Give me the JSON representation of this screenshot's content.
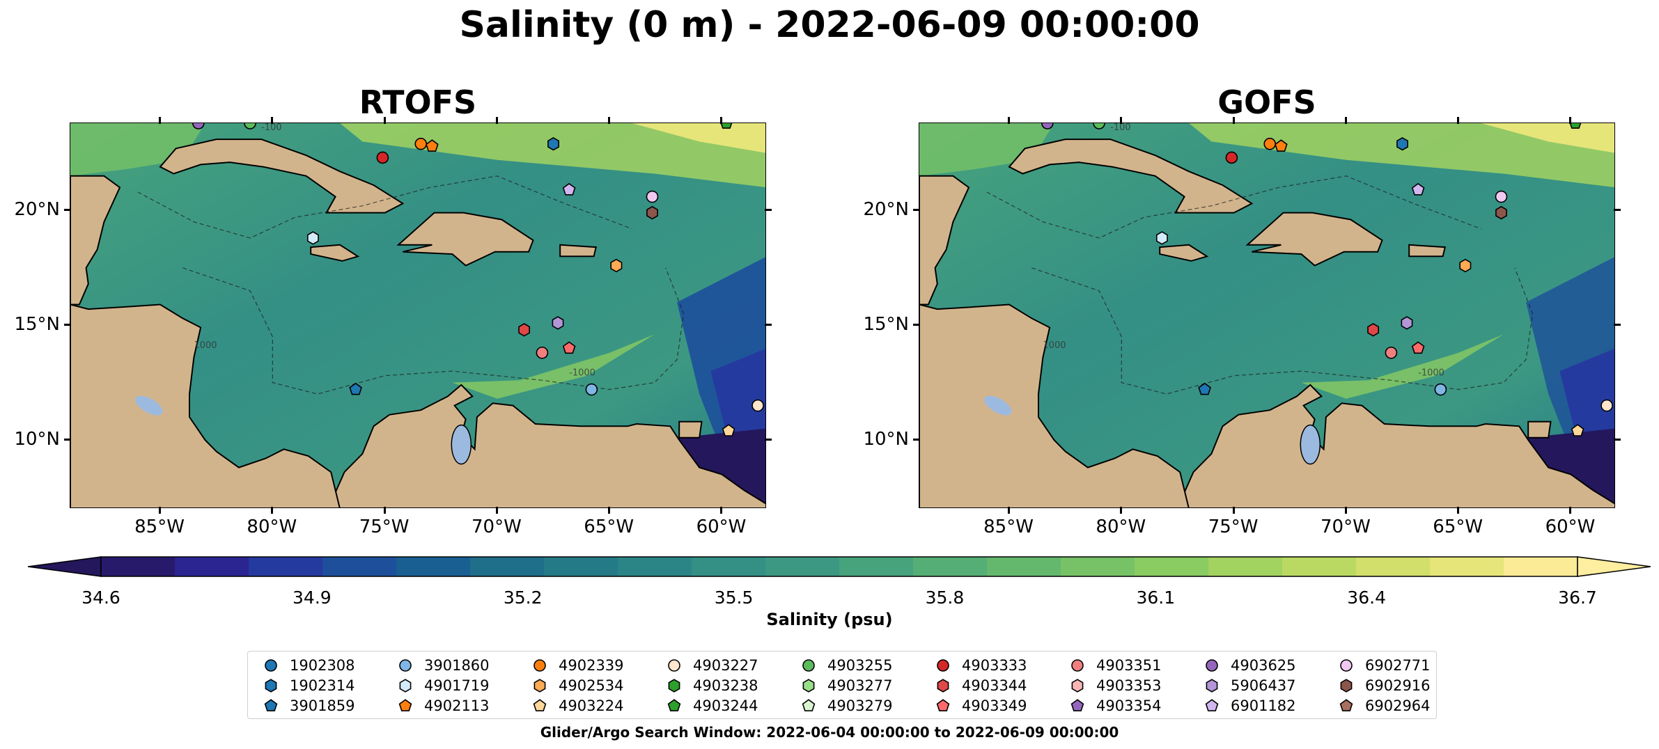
{
  "figure": {
    "title": "Salinity (0 m) - 2022-06-09 00:00:00",
    "footer": "Glider/Argo Search Window: 2022-06-04 00:00:00 to 2022-06-09 00:00:00"
  },
  "panels": [
    {
      "title": "RTOFS"
    },
    {
      "title": "GOFS"
    }
  ],
  "map_extent": {
    "lon_min": -89,
    "lon_max": -58,
    "lat_min": 7,
    "lat_max": 23.8
  },
  "axes": {
    "lon_ticks": [
      {
        "value": -85,
        "label": "85°W"
      },
      {
        "value": -80,
        "label": "80°W"
      },
      {
        "value": -75,
        "label": "75°W"
      },
      {
        "value": -70,
        "label": "70°W"
      },
      {
        "value": -65,
        "label": "65°W"
      },
      {
        "value": -60,
        "label": "60°W"
      }
    ],
    "lat_ticks": [
      {
        "value": 20,
        "label": "20°N"
      },
      {
        "value": 15,
        "label": "15°N"
      },
      {
        "value": 10,
        "label": "10°N"
      }
    ]
  },
  "colorbar": {
    "label": "Salinity (psu)",
    "min": 34.6,
    "max": 36.7,
    "step": 0.1,
    "tick_labels": [
      "34.6",
      "34.9",
      "35.2",
      "35.5",
      "35.8",
      "36.1",
      "36.4",
      "36.7"
    ],
    "colors": [
      "#271a6b",
      "#2b2592",
      "#253a9e",
      "#1d4f9b",
      "#195f92",
      "#1f6e8a",
      "#257a88",
      "#2b8586",
      "#348f85",
      "#3c9882",
      "#47a37c",
      "#55ae75",
      "#64b86e",
      "#77c267",
      "#8acb62",
      "#a2d260",
      "#bad963",
      "#d2df6a",
      "#e6e57a",
      "#fbea96"
    ],
    "extend_colors": {
      "low": "#24175c",
      "high": "#fdeea0"
    }
  },
  "colors": {
    "land": "#d2b48c",
    "lakes": "#9cbadf",
    "outside_low": "#24175c",
    "ocean_base": "#3c9882",
    "warm": "#a8d460",
    "fresh": "#1d4f9b"
  },
  "contour_labels": [
    "1000",
    "-1000",
    "-100"
  ],
  "floats": [
    {
      "id": "1902308",
      "marker": "circle",
      "color": "#1f77b4",
      "lon": null,
      "lat": null
    },
    {
      "id": "1902314",
      "marker": "hexagon",
      "color": "#1f77b4",
      "lon": -67.5,
      "lat": 22.9
    },
    {
      "id": "3901859",
      "marker": "pentagon",
      "color": "#1f77b4",
      "lon": -76.3,
      "lat": 12.2
    },
    {
      "id": "3901860",
      "marker": "circle",
      "color": "#7fb6e6",
      "lon": -65.8,
      "lat": 12.2
    },
    {
      "id": "4901719",
      "marker": "hexagon",
      "color": "#d4ecfa",
      "lon": -78.2,
      "lat": 18.8
    },
    {
      "id": "4902113",
      "marker": "pentagon",
      "color": "#ff7f0e",
      "lon": -72.9,
      "lat": 22.8
    },
    {
      "id": "4902339",
      "marker": "circle",
      "color": "#ff7f0e",
      "lon": -73.4,
      "lat": 22.9
    },
    {
      "id": "4902534",
      "marker": "hexagon",
      "color": "#ffaa55",
      "lon": -64.7,
      "lat": 17.6
    },
    {
      "id": "4903224",
      "marker": "pentagon",
      "color": "#ffd79a",
      "lon": -59.7,
      "lat": 10.4
    },
    {
      "id": "4903227",
      "marker": "circle",
      "color": "#ffe6cc",
      "lon": -58.4,
      "lat": 11.5
    },
    {
      "id": "4903238",
      "marker": "hexagon",
      "color": "#2ca02c",
      "lon": null,
      "lat": null
    },
    {
      "id": "4903244",
      "marker": "pentagon",
      "color": "#2ca02c",
      "lon": -59.8,
      "lat": 23.8
    },
    {
      "id": "4903255",
      "marker": "circle",
      "color": "#5cbc5c",
      "lon": -81,
      "lat": 23.8
    },
    {
      "id": "4903277",
      "marker": "hexagon",
      "color": "#98df8a",
      "lon": null,
      "lat": null
    },
    {
      "id": "4903279",
      "marker": "pentagon",
      "color": "#d9f5d0",
      "lon": null,
      "lat": null
    },
    {
      "id": "4903333",
      "marker": "circle",
      "color": "#d62728",
      "lon": -75.1,
      "lat": 22.3
    },
    {
      "id": "4903344",
      "marker": "hexagon",
      "color": "#e04848",
      "lon": -68.8,
      "lat": 14.8
    },
    {
      "id": "4903349",
      "marker": "pentagon",
      "color": "#ff6b6b",
      "lon": -66.8,
      "lat": 14.0
    },
    {
      "id": "4903351",
      "marker": "circle",
      "color": "#f08080",
      "lon": -68.0,
      "lat": 13.8
    },
    {
      "id": "4903353",
      "marker": "hexagon",
      "color": "#f7b6b6",
      "lon": null,
      "lat": null
    },
    {
      "id": "4903354",
      "marker": "pentagon",
      "color": "#9467bd",
      "lon": null,
      "lat": null
    },
    {
      "id": "4903625",
      "marker": "circle",
      "color": "#9467bd",
      "lon": -83.3,
      "lat": 23.8
    },
    {
      "id": "5906437",
      "marker": "hexagon",
      "color": "#b495d8",
      "lon": -67.3,
      "lat": 15.1
    },
    {
      "id": "6901182",
      "marker": "pentagon",
      "color": "#d2b6f0",
      "lon": -66.8,
      "lat": 20.9
    },
    {
      "id": "6902771",
      "marker": "circle",
      "color": "#f0c8f0",
      "lon": -63.1,
      "lat": 20.6
    },
    {
      "id": "6902916",
      "marker": "hexagon",
      "color": "#8c564b",
      "lon": -63.1,
      "lat": 19.9
    },
    {
      "id": "6902964",
      "marker": "pentagon",
      "color": "#a97060",
      "lon": null,
      "lat": null
    }
  ]
}
